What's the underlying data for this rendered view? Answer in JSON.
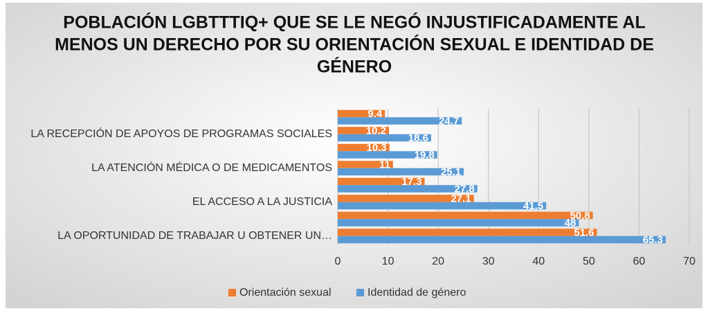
{
  "chart_data": {
    "type": "bar",
    "orientation": "horizontal",
    "title_lines": [
      "POBLACIÓN LGBTTTIQ+ QUE SE LE NEGÓ INJUSTIFICADAMENTE AL",
      "MENOS UN DERECHO POR SU ORIENTACIÓN SEXUAL E IDENTIDAD DE",
      "GÉNERO"
    ],
    "categories": [
      null,
      "LA RECEPCIÓN DE APOYOS DE PROGRAMAS SOCIALES",
      null,
      "LA ATENCIÓN MÉDICA O DE MEDICAMENTOS",
      null,
      "EL ACCESO A LA JUSTICIA",
      null,
      "LA OPORTUNIDAD DE TRABAJAR U OBTENER UN…"
    ],
    "series": [
      {
        "name": "Orientación sexual",
        "color": "#ed7d31",
        "values": [
          9.4,
          10.2,
          10.3,
          11,
          17.3,
          27.1,
          50.8,
          51.6
        ]
      },
      {
        "name": "Identidad de género",
        "color": "#5b9bd5",
        "values": [
          24.7,
          18.6,
          19.8,
          25.1,
          27.8,
          41.5,
          48,
          65.3
        ]
      }
    ],
    "xlim": [
      0,
      70
    ],
    "xticks": [
      0,
      10,
      20,
      30,
      40,
      50,
      60,
      70
    ],
    "grid": true,
    "legend": "bottom"
  }
}
